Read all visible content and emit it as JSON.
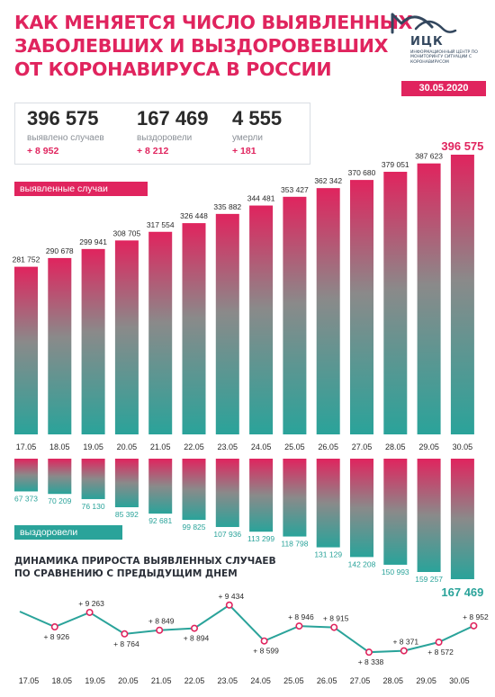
{
  "header": {
    "title_lines": [
      "КАК МЕНЯЕТСЯ ЧИСЛО ВЫЯВЛЕННЫХ",
      "ЗАБОЛЕВШИХ И ВЫЗДОРОВЕВШИХ",
      "ОТ КОРОНАВИРУСА В РОССИИ"
    ],
    "logo_name": "ИЦК",
    "logo_subtitle": "Информационный центр по мониторингу ситуации с коронавирусом",
    "date": "30.05.2020"
  },
  "summary": [
    {
      "value": "396 575",
      "label": "выявлено случаев",
      "delta": "+ 8 952"
    },
    {
      "value": "167 469",
      "label": "выздоровели",
      "delta": "+ 8 212"
    },
    {
      "value": "4 555",
      "label": "умерли",
      "delta": "+ 181"
    }
  ],
  "labels": {
    "confirmed_tag": "выявленные случаи",
    "recovered_tag": "выздоровели",
    "dynamics_title_lines": [
      "ДИНАМИКА ПРИРОСТА ВЫЯВЛЕННЫХ СЛУЧАЕВ",
      "ПО СРАВНЕНИЮ С ПРЕДЫДУЩИМ ДНЕМ"
    ]
  },
  "colors": {
    "accent": "#e0245e",
    "teal": "#2aa39a",
    "gray_bar": "#8a8a8a",
    "text_dark": "#2a2a2a"
  },
  "chart_data": [
    {
      "type": "bar",
      "categories": [
        "17.05",
        "18.05",
        "19.05",
        "20.05",
        "21.05",
        "22.05",
        "23.05",
        "24.05",
        "25.05",
        "26.05",
        "27.05",
        "28.05",
        "29.05",
        "30.05"
      ],
      "values": [
        281752,
        290678,
        299941,
        308705,
        317554,
        326448,
        335882,
        344481,
        353427,
        362342,
        370680,
        379051,
        387623,
        396575
      ],
      "value_labels": [
        "281 752",
        "290 678",
        "299 941",
        "308 705",
        "317 554",
        "326 448",
        "335 882",
        "344 481",
        "353 427",
        "362 342",
        "370 680",
        "379 051",
        "387 623",
        "396 575"
      ],
      "series_label": "выявленные случаи"
    },
    {
      "type": "bar",
      "categories": [
        "17.05",
        "18.05",
        "19.05",
        "20.05",
        "21.05",
        "22.05",
        "23.05",
        "24.05",
        "25.05",
        "26.05",
        "27.05",
        "28.05",
        "29.05",
        "30.05"
      ],
      "values": [
        67373,
        70209,
        76130,
        85392,
        92681,
        99825,
        107936,
        113299,
        118798,
        131129,
        142208,
        150993,
        159257,
        167469
      ],
      "value_labels": [
        "67 373",
        "70 209",
        "76 130",
        "85 392",
        "92 681",
        "99 825",
        "107 936",
        "113 299",
        "118 798",
        "131 129",
        "142 208",
        "150 993",
        "159 257",
        "167 469"
      ],
      "series_label": "выздоровели",
      "direction": "downward"
    },
    {
      "type": "line",
      "title": "ДИНАМИКА ПРИРОСТА ВЫЯВЛЕННЫХ СЛУЧАЕВ ПО СРАВНЕНИЮ С ПРЕДЫДУЩИМ ДНЕМ",
      "categories": [
        "17.05",
        "18.05",
        "19.05",
        "20.05",
        "21.05",
        "22.05",
        "23.05",
        "24.05",
        "25.05",
        "26.05",
        "27.05",
        "28.05",
        "29.05",
        "30.05"
      ],
      "values": [
        null,
        8926,
        9263,
        8764,
        8849,
        8894,
        9434,
        8599,
        8946,
        8915,
        8338,
        8371,
        8572,
        8952
      ],
      "value_labels": [
        "",
        "+ 8 926",
        "+ 9 263",
        "+ 8 764",
        "+ 8 849",
        "+ 8 894",
        "+ 9 434",
        "+ 8 599",
        "+ 8 946",
        "+ 8 915",
        "+ 8 338",
        "+ 8 371",
        "+ 8 572",
        "+ 8 952"
      ],
      "label_position": [
        "none",
        "below",
        "above",
        "below",
        "above",
        "below",
        "above",
        "below",
        "above",
        "above",
        "below",
        "above",
        "below",
        "above"
      ]
    }
  ]
}
